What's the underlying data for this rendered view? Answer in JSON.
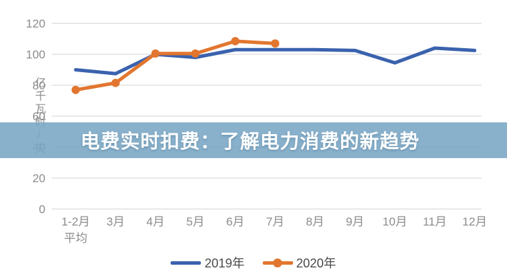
{
  "banner": {
    "title": "电费实时扣费：了解电力消费的新趋势",
    "bg_color": "#79A6C5",
    "text_color": "#FFFFFF"
  },
  "chart_data": {
    "type": "line",
    "title": "",
    "xlabel": "",
    "ylabel": "亿千瓦时/天",
    "categories": [
      "1-2月\n平均",
      "3月",
      "4月",
      "5月",
      "6月",
      "7月",
      "8月",
      "9月",
      "10月",
      "11月",
      "12月"
    ],
    "series": [
      {
        "name": "2019年",
        "color": "#3A62AE",
        "marker": "none",
        "values": [
          90,
          87.5,
          100,
          98,
          103,
          103,
          103,
          102.5,
          94.5,
          104,
          102.5
        ]
      },
      {
        "name": "2020年",
        "color": "#E2762F",
        "marker": "circle",
        "values": [
          77,
          81.5,
          100.5,
          100.5,
          108.5,
          107,
          null,
          null,
          null,
          null,
          null
        ]
      }
    ],
    "yticks": [
      0,
      20,
      40,
      60,
      80,
      100,
      120
    ],
    "ylim": [
      0,
      130
    ],
    "grid": true,
    "gridline_color": "#D9D9D9",
    "tick_color": "#8C8C8C",
    "legend_position": "bottom"
  }
}
